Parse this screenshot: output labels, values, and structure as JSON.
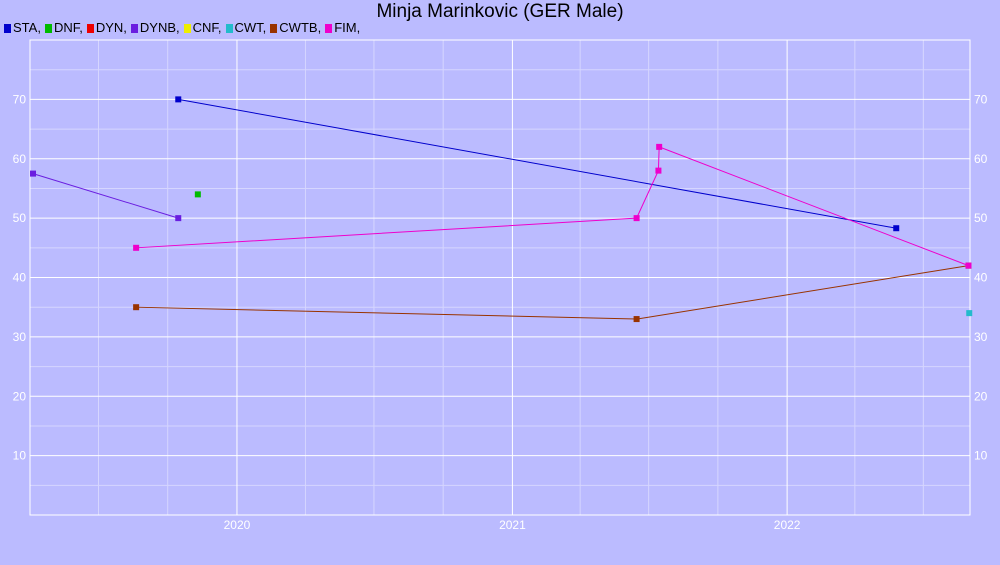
{
  "chart_data": {
    "type": "line",
    "title": "Minja Marinkovic (GER Male)",
    "xlabel": "",
    "ylabel": "",
    "x_axis": {
      "type": "date",
      "range": [
        "2019-04-01",
        "2022-09-01"
      ],
      "tick_labels": [
        "2020",
        "2021",
        "2022"
      ],
      "tick_values": [
        "2020-01-01",
        "2021-01-01",
        "2022-01-01"
      ],
      "minor_gridlines": "quarterly"
    },
    "y_axis": {
      "range": [
        0,
        80
      ],
      "tick_labels": [
        "10",
        "20",
        "30",
        "40",
        "50",
        "60",
        "70"
      ],
      "minor_gridlines": true,
      "labels_both_sides": true
    },
    "grid": true,
    "legend_position": "top-left",
    "series": [
      {
        "name": "STA",
        "color": "#0000cc",
        "points": [
          [
            "2019-10-15",
            70
          ],
          [
            "2022-05-26",
            48.3
          ]
        ]
      },
      {
        "name": "DNF",
        "color": "#00bb00",
        "points": [
          [
            "2019-11-10",
            54
          ]
        ]
      },
      {
        "name": "DYN",
        "color": "#ee0000",
        "points": []
      },
      {
        "name": "DYNB",
        "color": "#6a1ee0",
        "points": [
          [
            "2019-04-05",
            57.5
          ],
          [
            "2019-10-15",
            50
          ]
        ]
      },
      {
        "name": "CNF",
        "color": "#eeee00",
        "points": []
      },
      {
        "name": "CWT",
        "color": "#22bbcc",
        "points": [
          [
            "2022-08-31",
            34
          ]
        ]
      },
      {
        "name": "CWTB",
        "color": "#993300",
        "points": [
          [
            "2019-08-20",
            35
          ],
          [
            "2021-06-15",
            33
          ],
          [
            "2022-08-30",
            42
          ]
        ]
      },
      {
        "name": "FIM",
        "color": "#ee00cc",
        "points": [
          [
            "2019-08-20",
            45
          ],
          [
            "2021-06-15",
            50
          ],
          [
            "2021-07-14",
            58
          ],
          [
            "2021-07-15",
            62
          ],
          [
            "2022-08-30",
            42
          ]
        ]
      }
    ]
  }
}
